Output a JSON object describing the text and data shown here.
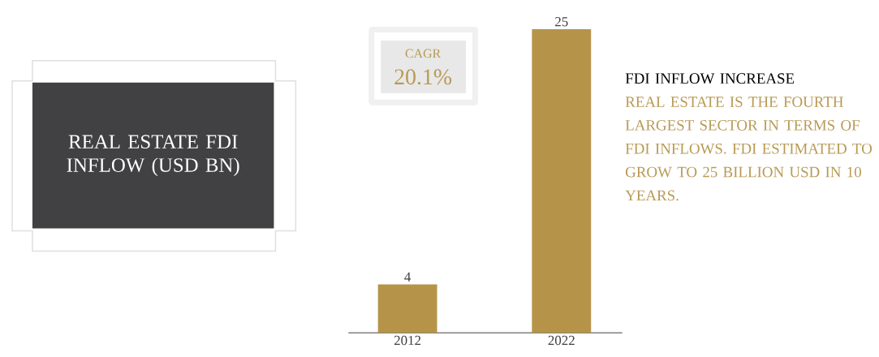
{
  "chart_data": {
    "type": "bar",
    "title": "REAL ESTATE FDI INFLOW (USD BN)",
    "categories": [
      "2012",
      "2022"
    ],
    "values": [
      4,
      25
    ],
    "color": "#b5944a",
    "data_labels": true,
    "annotations": [
      "CAGR",
      "20.1%",
      "FDI INFLOW INCREASE",
      "REAL ESTATE IS THE FOURTH LARGEST SECTOR IN TERMS OF FDI INFLOWS. FDI ESTIMATED TO GROW TO 25 BILLION USD IN 10 YEARS."
    ]
  }
}
